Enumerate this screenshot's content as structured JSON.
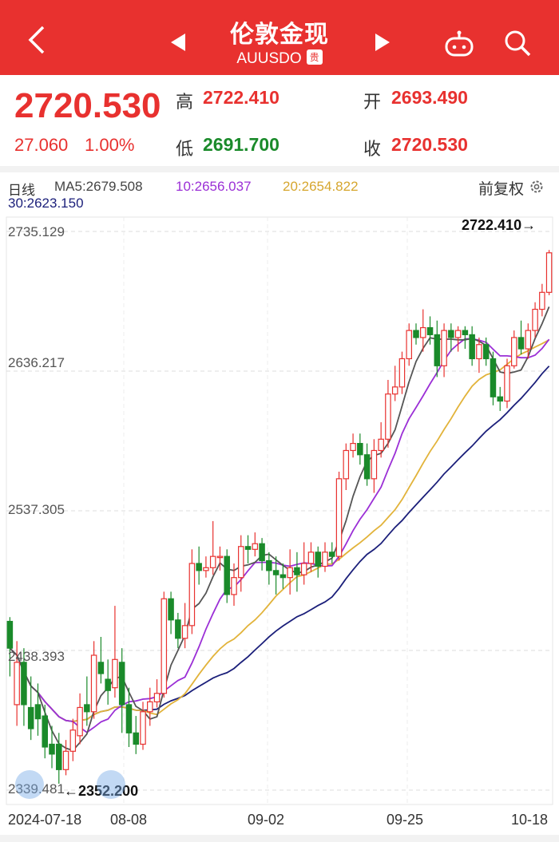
{
  "header": {
    "title": "伦敦金现",
    "code": "AUUSDO",
    "badge": "贵"
  },
  "quote": {
    "price": "2720.530",
    "change": "27.060",
    "change_pct": "1.00%",
    "high_label": "高",
    "high": "2722.410",
    "open_label": "开",
    "open": "2693.490",
    "low_label": "低",
    "low": "2691.700",
    "close_label": "收",
    "close": "2720.530"
  },
  "indicators": {
    "period": "日线",
    "ma5": "MA5:2679.508",
    "ma10": "10:2656.037",
    "ma20": "20:2654.822",
    "ma30": "30:2623.150",
    "adjust": "前复权"
  },
  "colors": {
    "up": "#e8312f",
    "down": "#1a8a2a",
    "ma5": "#555555",
    "ma10": "#9b2fd6",
    "ma20": "#e2b33a",
    "ma30": "#1b1f7a"
  },
  "chart_data": {
    "type": "candlestick",
    "y_ticks": [
      "2735.129",
      "2636.217",
      "2537.305",
      "2438.393",
      "2339.481"
    ],
    "ylim": [
      2339.481,
      2735.129
    ],
    "x_ticks": [
      "2024-07-18",
      "08-08",
      "09-02",
      "09-25",
      "10-18"
    ],
    "high_annotation": "2722.410→",
    "low_annotation": "←2352.200",
    "grid": true,
    "candles": [
      [
        2459,
        2440,
        2462,
        2420
      ],
      [
        2400,
        2430,
        2445,
        2385
      ],
      [
        2430,
        2400,
        2440,
        2385
      ],
      [
        2398,
        2383,
        2420,
        2375
      ],
      [
        2400,
        2390,
        2415,
        2378
      ],
      [
        2392,
        2370,
        2400,
        2362
      ],
      [
        2372,
        2365,
        2385,
        2355
      ],
      [
        2372,
        2354,
        2380,
        2344
      ],
      [
        2354,
        2367,
        2375,
        2350
      ],
      [
        2367,
        2382,
        2390,
        2360
      ],
      [
        2378,
        2398,
        2408,
        2372
      ],
      [
        2400,
        2395,
        2420,
        2385
      ],
      [
        2395,
        2435,
        2445,
        2390
      ],
      [
        2430,
        2422,
        2448,
        2415
      ],
      [
        2418,
        2410,
        2432,
        2400
      ],
      [
        2412,
        2432,
        2470,
        2405
      ],
      [
        2430,
        2400,
        2440,
        2380
      ],
      [
        2400,
        2380,
        2412,
        2370
      ],
      [
        2380,
        2372,
        2392,
        2365
      ],
      [
        2372,
        2395,
        2402,
        2368
      ],
      [
        2395,
        2402,
        2412,
        2385
      ],
      [
        2402,
        2408,
        2418,
        2398
      ],
      [
        2408,
        2475,
        2480,
        2405
      ],
      [
        2475,
        2460,
        2480,
        2450
      ],
      [
        2460,
        2447,
        2465,
        2440
      ],
      [
        2447,
        2456,
        2472,
        2440
      ],
      [
        2456,
        2500,
        2510,
        2450
      ],
      [
        2500,
        2495,
        2512,
        2485
      ],
      [
        2495,
        2497,
        2505,
        2490
      ],
      [
        2497,
        2505,
        2530,
        2492
      ],
      [
        2505,
        2505,
        2512,
        2495
      ],
      [
        2505,
        2478,
        2510,
        2472
      ],
      [
        2478,
        2490,
        2500,
        2470
      ],
      [
        2490,
        2512,
        2520,
        2480
      ],
      [
        2512,
        2510,
        2520,
        2500
      ],
      [
        2510,
        2514,
        2522,
        2505
      ],
      [
        2514,
        2502,
        2518,
        2495
      ],
      [
        2502,
        2495,
        2508,
        2485
      ],
      [
        2495,
        2492,
        2505,
        2478
      ],
      [
        2492,
        2490,
        2500,
        2482
      ],
      [
        2490,
        2497,
        2510,
        2478
      ],
      [
        2497,
        2492,
        2508,
        2480
      ],
      [
        2492,
        2500,
        2515,
        2485
      ],
      [
        2500,
        2508,
        2515,
        2494
      ],
      [
        2508,
        2498,
        2512,
        2490
      ],
      [
        2498,
        2508,
        2515,
        2494
      ],
      [
        2508,
        2505,
        2515,
        2500
      ],
      [
        2505,
        2560,
        2565,
        2502
      ],
      [
        2560,
        2580,
        2585,
        2552
      ],
      [
        2580,
        2585,
        2592,
        2575
      ],
      [
        2585,
        2577,
        2592,
        2570
      ],
      [
        2577,
        2560,
        2585,
        2555
      ],
      [
        2560,
        2580,
        2588,
        2550
      ],
      [
        2580,
        2588,
        2600,
        2575
      ],
      [
        2588,
        2620,
        2630,
        2582
      ],
      [
        2620,
        2625,
        2640,
        2615
      ],
      [
        2625,
        2645,
        2650,
        2620
      ],
      [
        2645,
        2665,
        2670,
        2640
      ],
      [
        2665,
        2660,
        2670,
        2655
      ],
      [
        2660,
        2667,
        2680,
        2650
      ],
      [
        2667,
        2662,
        2675,
        2655
      ],
      [
        2662,
        2640,
        2672,
        2632
      ],
      [
        2640,
        2665,
        2670,
        2632
      ],
      [
        2665,
        2660,
        2670,
        2650
      ],
      [
        2660,
        2665,
        2668,
        2650
      ],
      [
        2665,
        2662,
        2668,
        2652
      ],
      [
        2662,
        2645,
        2668,
        2640
      ],
      [
        2645,
        2655,
        2660,
        2635
      ],
      [
        2655,
        2645,
        2660,
        2640
      ],
      [
        2645,
        2618,
        2650,
        2612
      ],
      [
        2618,
        2615,
        2625,
        2608
      ],
      [
        2615,
        2640,
        2645,
        2610
      ],
      [
        2640,
        2660,
        2665,
        2638
      ],
      [
        2660,
        2652,
        2672,
        2648
      ],
      [
        2652,
        2665,
        2670,
        2645
      ],
      [
        2665,
        2680,
        2685,
        2660
      ],
      [
        2680,
        2692,
        2698,
        2675
      ],
      [
        2692,
        2720,
        2722,
        2690
      ]
    ]
  }
}
